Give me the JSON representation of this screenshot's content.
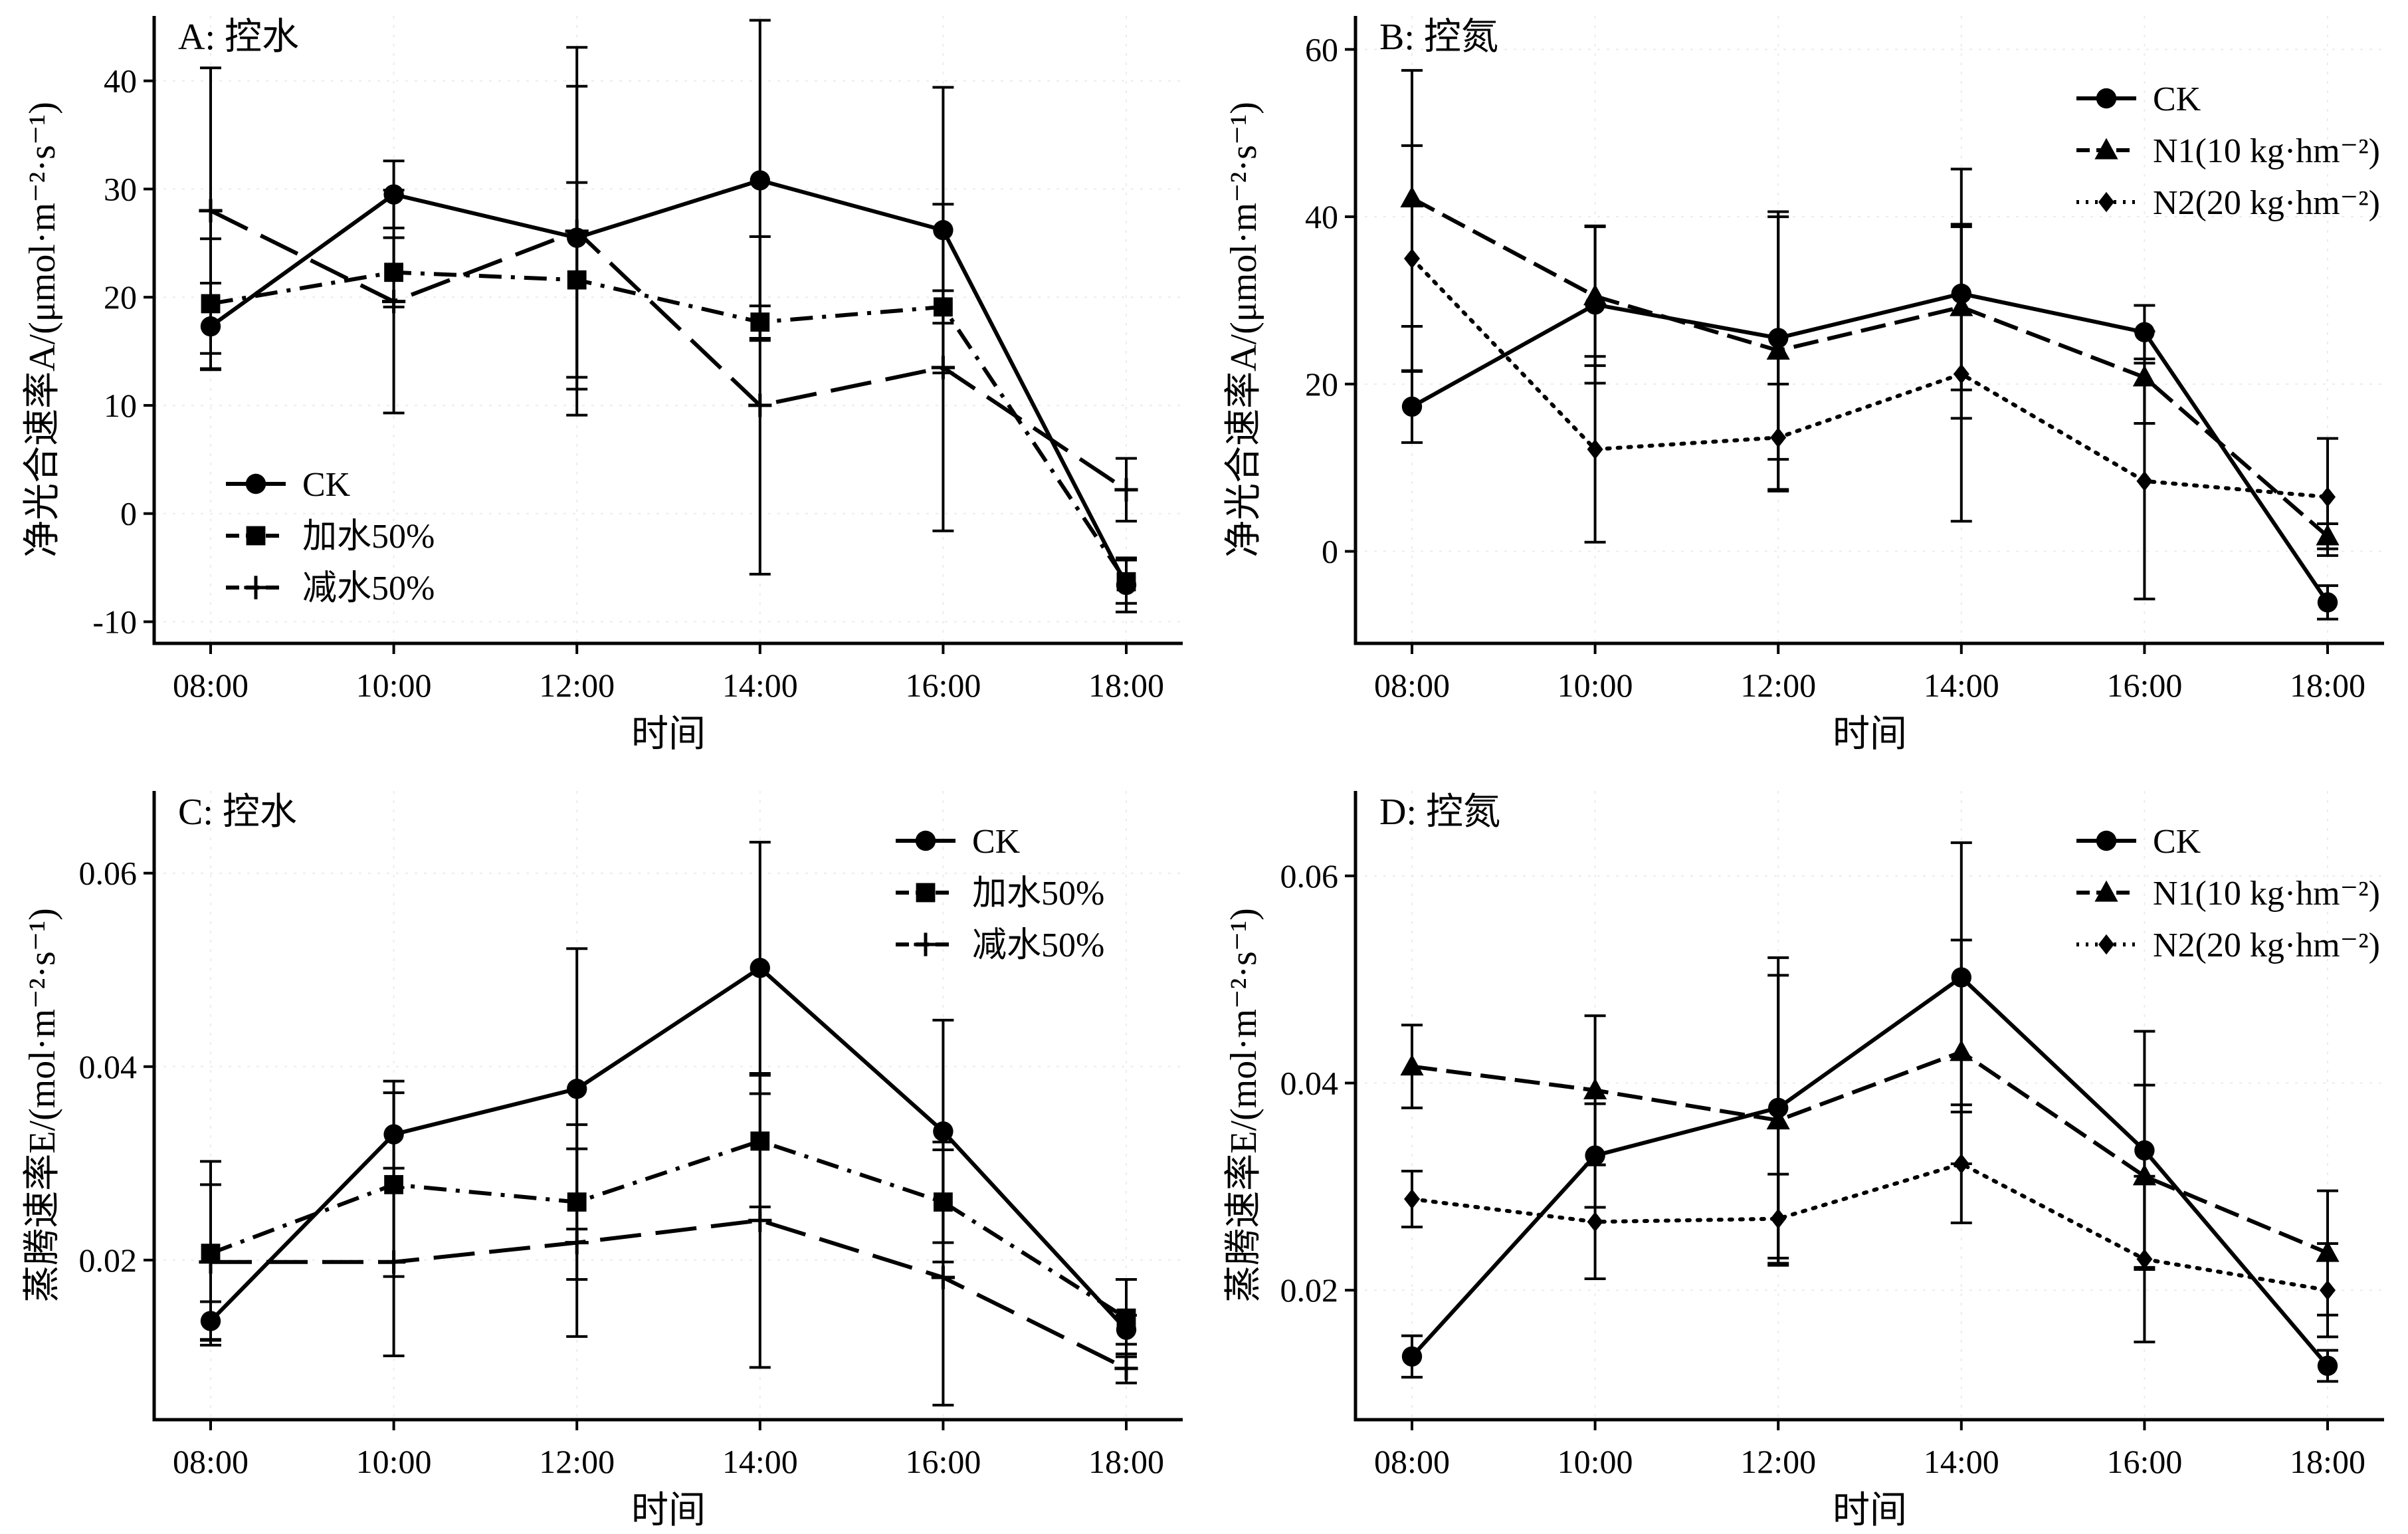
{
  "chart_data": [
    {
      "panel": "A",
      "type": "line",
      "title": "A: 控水",
      "xlabel": "时间",
      "ylabel": "净光合速率A/(μmol·m⁻²·s⁻¹)",
      "categories": [
        "08:00",
        "10:00",
        "12:00",
        "14:00",
        "16:00",
        "18:00"
      ],
      "ylim": [
        -12,
        46
      ],
      "yticks": [
        -10,
        0,
        10,
        20,
        30,
        40
      ],
      "ytick_labels": [
        "-10",
        "0",
        "10",
        "20",
        "30",
        "40"
      ],
      "legend_position": "bottom-left",
      "series": [
        {
          "name": "CK",
          "marker": "circle",
          "line": "solid",
          "values": [
            17.3,
            29.5,
            25.5,
            30.8,
            26.2,
            -6.6
          ],
          "errors": [
            4.0,
            3.1,
            14.0,
            14.8,
            13.2,
            2.5
          ]
        },
        {
          "name": "加水50%",
          "marker": "square",
          "line": "dashdot",
          "values": [
            19.4,
            22.3,
            21.6,
            17.7,
            19.1,
            -6.3
          ],
          "errors": [
            6.0,
            3.2,
            9.0,
            1.5,
            1.5,
            2.0
          ]
        },
        {
          "name": "减水50%",
          "marker": "plus",
          "line": "longdash",
          "values": [
            28.0,
            19.6,
            26.1,
            10.0,
            13.5,
            2.2
          ],
          "errors": [
            13.2,
            10.3,
            17.0,
            15.6,
            15.1,
            2.9
          ]
        }
      ]
    },
    {
      "panel": "B",
      "type": "line",
      "title": "B: 控氮",
      "xlabel": "时间",
      "ylabel": "净光合速率A/(μmol·m⁻²·s⁻¹)",
      "categories": [
        "08:00",
        "10:00",
        "12:00",
        "14:00",
        "16:00",
        "18:00"
      ],
      "ylim": [
        -11,
        64
      ],
      "yticks": [
        0,
        20,
        40,
        60
      ],
      "ytick_labels": [
        "0",
        "20",
        "40",
        "60"
      ],
      "legend_position": "top-right",
      "series": [
        {
          "name": "CK",
          "marker": "circle",
          "line": "solid",
          "values": [
            17.3,
            29.5,
            25.5,
            30.8,
            26.2,
            -6.1
          ],
          "errors": [
            4.3,
            9.4,
            14.5,
            14.9,
            3.2,
            2.0
          ]
        },
        {
          "name": "N1(10 kg·hm⁻²)",
          "marker": "triangle",
          "line": "dashed",
          "values": [
            42.2,
            30.5,
            24.0,
            29.2,
            20.8,
            1.8
          ],
          "errors": [
            15.3,
            8.3,
            16.6,
            9.9,
            5.5,
            1.5
          ]
        },
        {
          "name": "N2(20 kg·hm⁻²)",
          "marker": "diamond",
          "line": "dotted",
          "values": [
            35.0,
            12.2,
            13.6,
            21.2,
            8.4,
            6.5
          ],
          "errors": [
            13.5,
            11.1,
            6.4,
            17.6,
            14.1,
            7.0
          ]
        }
      ]
    },
    {
      "panel": "C",
      "type": "line",
      "title": "C: 控水",
      "xlabel": "时间",
      "ylabel": "蒸腾速率E/(mol·m⁻²·s⁻¹)",
      "categories": [
        "08:00",
        "10:00",
        "12:00",
        "14:00",
        "16:00",
        "18:00"
      ],
      "ylim": [
        0.0035,
        0.0685
      ],
      "yticks": [
        0.02,
        0.04,
        0.06
      ],
      "ytick_labels": [
        "0.02",
        "0.04",
        "0.06"
      ],
      "legend_position": "top-right",
      "series": [
        {
          "name": "CK",
          "marker": "circle",
          "line": "solid",
          "values": [
            0.0137,
            0.033,
            0.0377,
            0.0502,
            0.0333,
            0.0128
          ],
          "errors": [
            0.002,
            0.0055,
            0.0145,
            0.013,
            0.0115,
            0.0015
          ]
        },
        {
          "name": "加水50%",
          "marker": "square",
          "line": "dashdot",
          "values": [
            0.0207,
            0.0278,
            0.026,
            0.0323,
            0.026,
            0.014
          ],
          "errors": [
            0.0095,
            0.0095,
            0.008,
            0.0068,
            0.0062,
            0.004
          ]
        },
        {
          "name": "减水50%",
          "marker": "plus",
          "line": "longdash",
          "values": [
            0.0198,
            0.0198,
            0.0218,
            0.0241,
            0.0182,
            0.0088
          ],
          "errors": [
            0.008,
            0.0097,
            0.0097,
            0.0152,
            0.0132,
            0.0015
          ]
        }
      ]
    },
    {
      "panel": "D",
      "type": "line",
      "title": "D: 控氮",
      "xlabel": "时间",
      "ylabel": "蒸腾速率E/(mol·m⁻²·s⁻¹)",
      "categories": [
        "08:00",
        "10:00",
        "12:00",
        "14:00",
        "16:00",
        "18:00"
      ],
      "ylim": [
        0.0075,
        0.0682
      ],
      "yticks": [
        0.02,
        0.04,
        0.06
      ],
      "ytick_labels": [
        "0.02",
        "0.04",
        "0.06"
      ],
      "legend_position": "top-right",
      "series": [
        {
          "name": "CK",
          "marker": "circle",
          "line": "solid",
          "values": [
            0.0136,
            0.033,
            0.0376,
            0.0502,
            0.0335,
            0.0127
          ],
          "errors": [
            0.002,
            0.005,
            0.0145,
            0.013,
            0.0115,
            0.0015
          ]
        },
        {
          "name": "N1(10 kg·hm⁻²)",
          "marker": "triangle",
          "line": "dashed",
          "values": [
            0.0416,
            0.0393,
            0.0364,
            0.043,
            0.031,
            0.0236
          ],
          "errors": [
            0.004,
            0.0072,
            0.014,
            0.0108,
            0.0088,
            0.006
          ]
        },
        {
          "name": "N2(20 kg·hm⁻²)",
          "marker": "diamond",
          "line": "dotted",
          "values": [
            0.0288,
            0.0266,
            0.0269,
            0.0322,
            0.023,
            0.02
          ],
          "errors": [
            0.0027,
            0.0055,
            0.0043,
            0.0057,
            0.008,
            0.0045
          ]
        }
      ]
    }
  ]
}
